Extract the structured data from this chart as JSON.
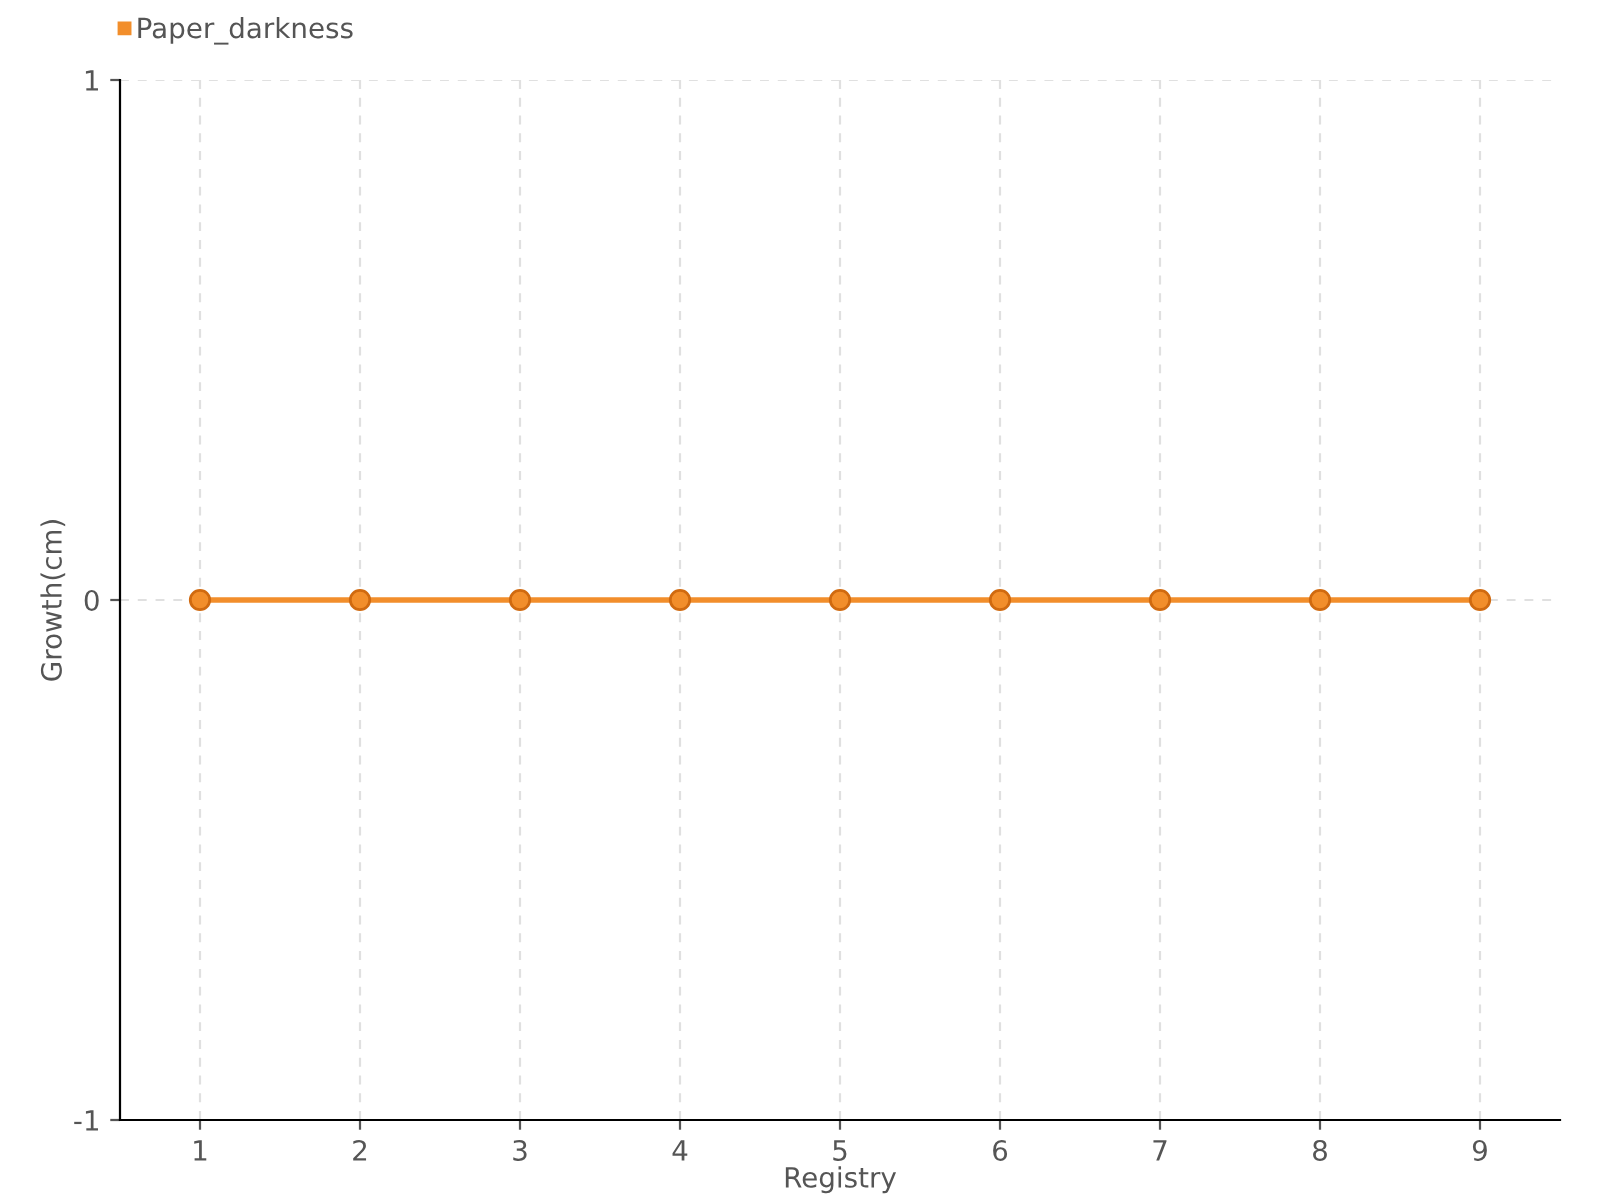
{
  "chart_data": {
    "type": "line",
    "xlabel": "Registry",
    "ylabel": "Growth(cm)",
    "categories": [
      "1",
      "2",
      "3",
      "4",
      "5",
      "6",
      "7",
      "8",
      "9"
    ],
    "series": [
      {
        "name": "Paper_darkness",
        "color": "#f28e2b",
        "values": [
          0,
          0,
          0,
          0,
          0,
          0,
          0,
          0,
          0
        ]
      }
    ],
    "ylim": [
      -1,
      1
    ],
    "yticks": [
      -1,
      0,
      1
    ],
    "grid": true,
    "legend": "top left",
    "marker": "circle",
    "line_style": "solid"
  }
}
